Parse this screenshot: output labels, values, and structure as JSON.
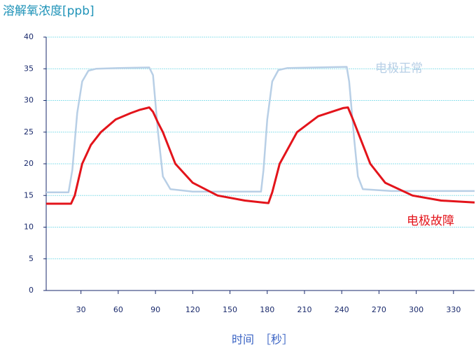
{
  "chart_data": {
    "type": "line",
    "title": "溶解氧浓度[ppb]",
    "x_label": "时间　［秒］",
    "xlim": [
      2,
      347
    ],
    "ylim": [
      0,
      40
    ],
    "xticks": [
      30,
      60,
      90,
      120,
      150,
      180,
      210,
      240,
      270,
      300,
      330
    ],
    "yticks": [
      0,
      5,
      10,
      15,
      20,
      25,
      30,
      35,
      40
    ],
    "grid": true,
    "series": [
      {
        "name": "电极正常",
        "color": "#b8cfe6",
        "x": [
          2,
          20,
          23,
          27,
          31,
          36,
          42,
          60,
          85,
          88,
          92,
          96,
          102,
          120,
          150,
          175,
          177,
          180,
          184,
          189,
          196,
          220,
          244,
          246,
          250,
          253,
          257,
          280,
          347
        ],
        "values": [
          15.5,
          15.5,
          19,
          28,
          33,
          34.7,
          35,
          35.1,
          35.2,
          34,
          25,
          18,
          16,
          15.6,
          15.6,
          15.6,
          19,
          27,
          33,
          34.8,
          35.1,
          35.2,
          35.3,
          33,
          24,
          18,
          16,
          15.7,
          15.7
        ]
      },
      {
        "name": "电极故障",
        "color": "#e3141b",
        "x": [
          2,
          22,
          25,
          31,
          38,
          46,
          58,
          70,
          77,
          85,
          88,
          92,
          96,
          106,
          120,
          140,
          162,
          176,
          181,
          184,
          190,
          204,
          221,
          241,
          245,
          249,
          255,
          263,
          275,
          297,
          320,
          347
        ],
        "values": [
          13.7,
          13.7,
          15,
          20,
          23,
          25,
          27,
          28,
          28.5,
          28.9,
          28.2,
          26.5,
          25,
          20,
          17,
          15,
          14.2,
          13.9,
          13.8,
          15.5,
          20,
          25,
          27.5,
          28.8,
          28.9,
          27,
          24,
          20,
          17,
          15,
          14.2,
          13.9
        ]
      }
    ]
  }
}
